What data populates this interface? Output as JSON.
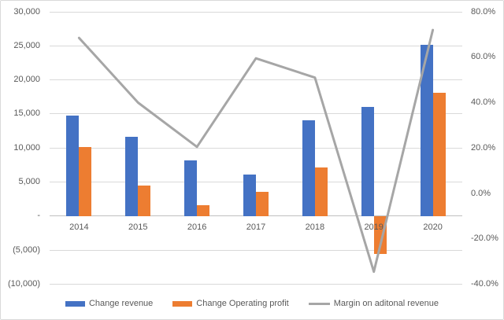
{
  "chart_data": {
    "type": "bar",
    "subtype": "bar-line-combo",
    "title": "",
    "categories": [
      "2014",
      "2015",
      "2016",
      "2017",
      "2018",
      "2019",
      "2020"
    ],
    "series": [
      {
        "name": "Change revenue",
        "type": "bar",
        "axis": "left",
        "color": "#4472C4",
        "values": [
          14800,
          11600,
          8200,
          6100,
          14100,
          16000,
          25200
        ]
      },
      {
        "name": "Change Operating profit",
        "type": "bar",
        "axis": "left",
        "color": "#ED7D31",
        "values": [
          10100,
          4500,
          1600,
          3600,
          7200,
          -5600,
          18100
        ]
      },
      {
        "name": "Margin on aditonal revenue",
        "type": "line",
        "axis": "right",
        "color": "#A6A6A6",
        "unit": "%",
        "values": [
          68.5,
          40,
          20.5,
          59.5,
          51,
          -34.5,
          72
        ]
      }
    ],
    "left_axis": {
      "max": 30000,
      "min": -10000,
      "step": 5000,
      "tick_labels": [
        "30,000",
        "25,000",
        "20,000",
        "15,000",
        "10,000",
        "5,000",
        "-",
        "(5,000)",
        "(10,000)"
      ]
    },
    "right_axis": {
      "max": 80,
      "min": -40,
      "step": 20,
      "tick_labels": [
        "80.0%",
        "60.0%",
        "40.0%",
        "20.0%",
        "0.0%",
        "-20.0%",
        "-40.0%"
      ]
    },
    "grid": true,
    "legend_position": "bottom"
  },
  "legend": {
    "items": [
      {
        "label": "Change revenue",
        "swatch": "bar",
        "color": "#4472C4"
      },
      {
        "label": "Change Operating profit",
        "swatch": "bar",
        "color": "#ED7D31"
      },
      {
        "label": "Margin on aditonal revenue",
        "swatch": "line",
        "color": "#A6A6A6"
      }
    ]
  },
  "colors": {
    "bar_blue": "#4472C4",
    "bar_orange": "#ED7D31",
    "line_gray": "#A6A6A6",
    "gridline": "#D9D9D9",
    "axis_line": "#BFBFBF",
    "text": "#595959",
    "background": "#FFFFFF",
    "border": "#D9D9D9"
  }
}
